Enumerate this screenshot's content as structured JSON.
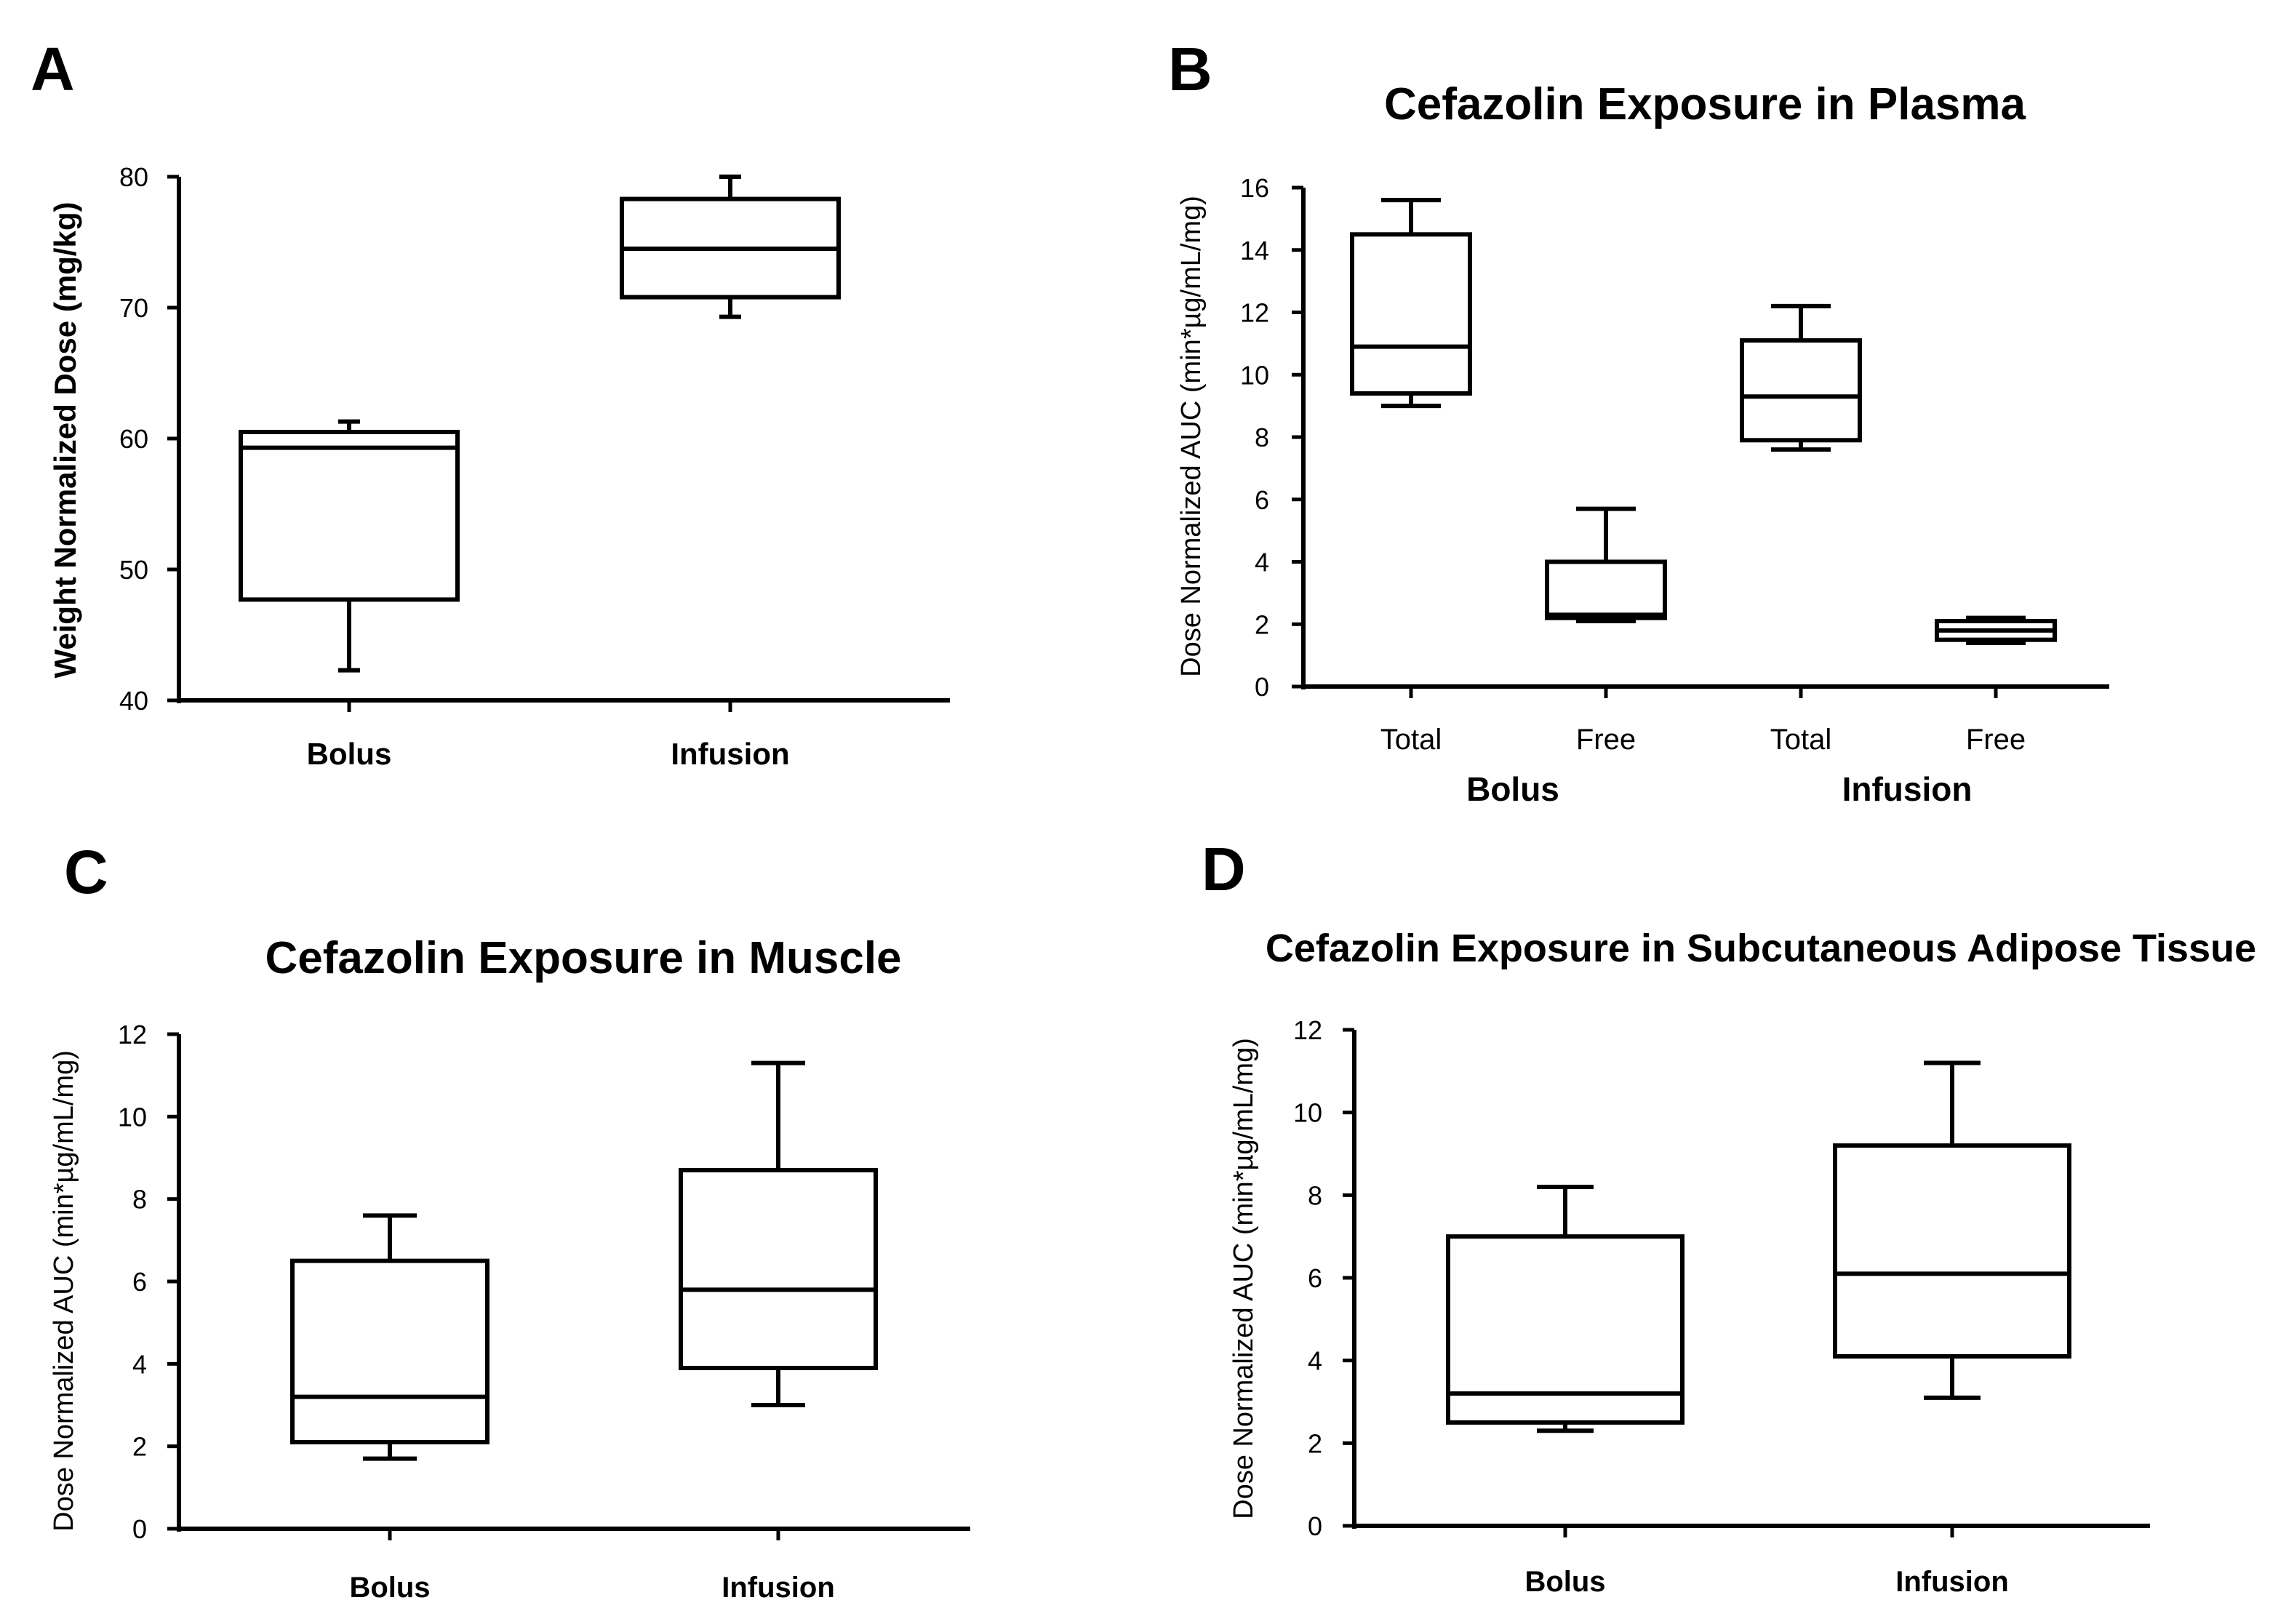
{
  "chart_data": [
    {
      "panel": "A",
      "type": "box",
      "title": "",
      "ylabel": "Weight Normalized Dose (mg/kg)",
      "ylim": [
        40,
        80
      ],
      "yticks": [
        40,
        50,
        60,
        70,
        80
      ],
      "categories": [
        "Bolus",
        "Infusion"
      ],
      "boxes": [
        {
          "min": 42.3,
          "q1": 47.7,
          "median": 59.3,
          "q3": 60.5,
          "max": 61.3
        },
        {
          "min": 69.3,
          "q1": 70.8,
          "median": 74.5,
          "q3": 78.3,
          "max": 80.0
        }
      ]
    },
    {
      "panel": "B",
      "type": "box",
      "title": "Cefazolin Exposure in Plasma",
      "ylabel": "Dose Normalized AUC (min*µg/mL/mg)",
      "ylim": [
        0,
        16
      ],
      "yticks": [
        0,
        2,
        4,
        6,
        8,
        10,
        12,
        14,
        16
      ],
      "categories": [
        "Total",
        "Free",
        "Total",
        "Free"
      ],
      "groups": [
        "Bolus",
        "Infusion"
      ],
      "boxes": [
        {
          "min": 9.0,
          "q1": 9.4,
          "median": 10.9,
          "q3": 14.5,
          "max": 15.6
        },
        {
          "min": 2.1,
          "q1": 2.2,
          "median": 2.3,
          "q3": 4.0,
          "max": 5.7
        },
        {
          "min": 7.6,
          "q1": 7.9,
          "median": 9.3,
          "q3": 11.1,
          "max": 12.2
        },
        {
          "min": 1.4,
          "q1": 1.5,
          "median": 1.8,
          "q3": 2.1,
          "max": 2.2
        }
      ]
    },
    {
      "panel": "C",
      "type": "box",
      "title": "Cefazolin Exposure in Muscle",
      "ylabel": "Dose Normalized AUC (min*µg/mL/mg)",
      "ylim": [
        0,
        12
      ],
      "yticks": [
        0,
        2,
        4,
        6,
        8,
        10,
        12
      ],
      "categories": [
        "Bolus",
        "Infusion"
      ],
      "boxes": [
        {
          "min": 1.7,
          "q1": 2.1,
          "median": 3.2,
          "q3": 6.5,
          "max": 7.6
        },
        {
          "min": 3.0,
          "q1": 3.9,
          "median": 5.8,
          "q3": 8.7,
          "max": 11.3
        }
      ]
    },
    {
      "panel": "D",
      "type": "box",
      "title": "Cefazolin Exposure in Subcutaneous Adipose Tissue",
      "ylabel": "Dose Normalized AUC (min*µg/mL/mg)",
      "ylim": [
        0,
        12
      ],
      "yticks": [
        0,
        2,
        4,
        6,
        8,
        10,
        12
      ],
      "categories": [
        "Bolus",
        "Infusion"
      ],
      "boxes": [
        {
          "min": 2.3,
          "q1": 2.5,
          "median": 3.2,
          "q3": 7.0,
          "max": 8.2
        },
        {
          "min": 3.1,
          "q1": 4.1,
          "median": 6.1,
          "q3": 9.2,
          "max": 11.2
        }
      ]
    }
  ]
}
